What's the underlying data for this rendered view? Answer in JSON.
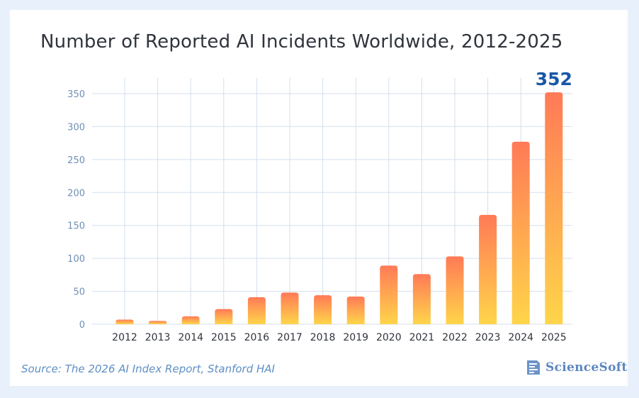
{
  "chart_data": {
    "type": "bar",
    "title": "Number of Reported AI Incidents Worldwide, 2012-2025",
    "xlabel": "",
    "ylabel": "",
    "categories": [
      "2012",
      "2013",
      "2014",
      "2015",
      "2016",
      "2017",
      "2018",
      "2019",
      "2020",
      "2021",
      "2022",
      "2023",
      "2024",
      "2025"
    ],
    "values": [
      7,
      5,
      12,
      23,
      41,
      48,
      44,
      42,
      89,
      76,
      103,
      166,
      277,
      352
    ],
    "ylim": [
      0,
      350
    ],
    "yticks": [
      0,
      50,
      100,
      150,
      200,
      250,
      300,
      350
    ],
    "highlight_label": "352",
    "grid": true,
    "bar_gradient": {
      "top": "#ff7a57",
      "bottom": "#ffd54a"
    },
    "highlight_color": "#1a57a8"
  },
  "footer": {
    "source": "Source: The 2026 AI Index Report, Stanford HAI",
    "logo_text": "ScienceSoft"
  }
}
